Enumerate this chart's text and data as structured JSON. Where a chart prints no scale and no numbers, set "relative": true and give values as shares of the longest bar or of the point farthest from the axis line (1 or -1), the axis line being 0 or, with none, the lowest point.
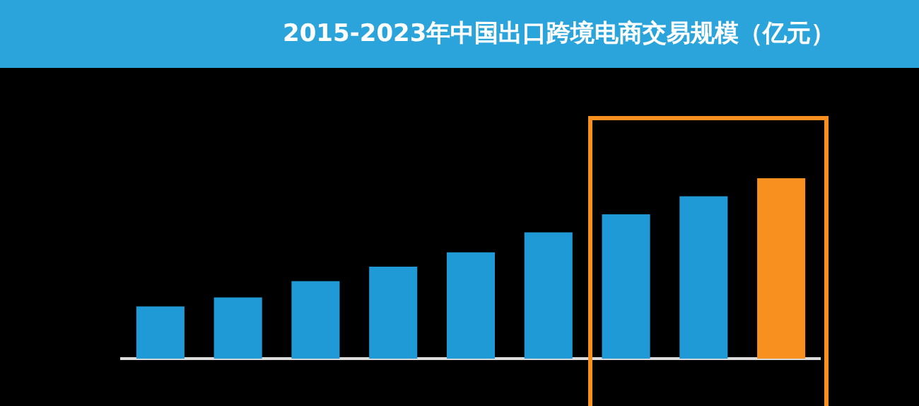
{
  "chart_data": {
    "type": "bar",
    "title": "2015-2023年中国出口跨境电商交易规模（亿元）",
    "categories": [
      null,
      null,
      null,
      null,
      null,
      null,
      null,
      null,
      null
    ],
    "values": [
      0.29,
      0.34,
      0.43,
      0.51,
      0.59,
      0.7,
      0.8,
      0.9,
      1
    ],
    "colors": [
      "#1f9ad6",
      "#1f9ad6",
      "#1f9ad6",
      "#1f9ad6",
      "#1f9ad6",
      "#1f9ad6",
      "#1f9ad6",
      "#1f9ad6",
      "#f7901e"
    ],
    "relative": true,
    "legend": false
  }
}
